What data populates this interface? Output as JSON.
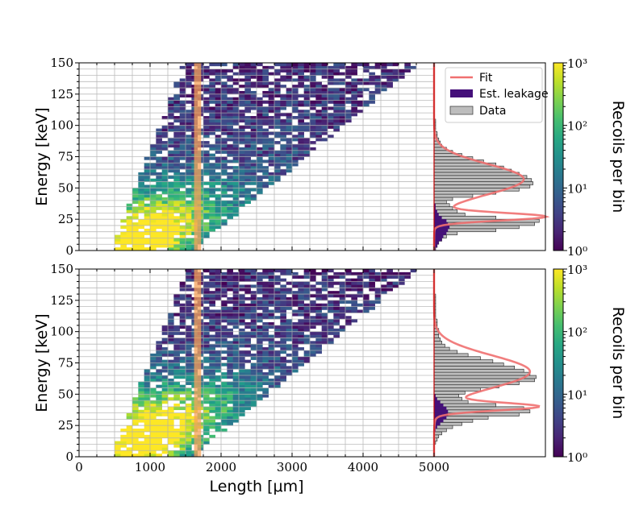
{
  "chart_data": [
    {
      "type": "heatmap",
      "panel": "top",
      "xlabel": "Length [μm]",
      "ylabel": "Energy [keV]",
      "xlim": [
        0,
        5000
      ],
      "ylim": [
        0,
        150
      ],
      "xticks": [
        "0",
        "1000",
        "2000",
        "3000",
        "4000",
        "5000"
      ],
      "yticks": [
        "0",
        "25",
        "50",
        "75",
        "100",
        "125",
        "150"
      ],
      "color_scale": "log",
      "colormap": "viridis",
      "colorbar_label": "Recoils per bin",
      "colorbar_ticks": [
        "10⁰",
        "10¹",
        "10²",
        "10³"
      ],
      "colorbar_range": [
        1,
        1000
      ],
      "highlight_band_x": [
        1620,
        1720
      ],
      "band_shape": {
        "x_start_low": 450,
        "x_start_high": 1150,
        "x_end_low": 1600,
        "x_end_high": 4800,
        "peak_energy": 10
      },
      "side_histogram": {
        "type": "horizontal-histogram",
        "legend": [
          "Fit",
          "Est. leakage",
          "Data"
        ],
        "legend_position": "top-right",
        "bins": [
          0,
          2.5,
          5,
          7.5,
          10,
          12.5,
          15,
          17.5,
          20,
          22.5,
          25,
          27.5,
          30,
          32.5,
          35,
          37.5,
          40,
          42.5,
          45,
          47.5,
          50,
          52.5,
          55,
          57.5,
          60,
          62.5,
          65,
          67.5,
          70,
          72.5,
          75,
          77.5,
          80,
          82.5,
          85,
          87.5,
          90,
          92.5,
          95,
          97.5,
          100,
          102.5,
          105,
          107.5,
          110,
          112.5,
          115,
          117.5,
          120
        ],
        "data_counts": [
          1,
          2,
          3,
          5,
          8,
          15,
          40,
          55,
          65,
          68,
          40,
          20,
          15,
          12,
          10,
          8,
          12,
          25,
          40,
          55,
          62,
          64,
          63,
          60,
          55,
          50,
          45,
          40,
          32,
          25,
          18,
          12,
          8,
          5,
          4,
          3,
          2,
          2,
          1,
          1,
          1,
          1,
          0,
          0,
          0,
          0,
          0,
          0,
          0
        ],
        "leakage_counts": [
          1,
          2,
          3,
          5,
          6,
          8,
          9,
          10,
          9,
          8,
          5,
          3,
          2,
          1,
          1,
          0,
          0,
          0,
          0,
          0,
          0,
          0,
          0,
          0,
          0,
          0,
          0,
          0,
          0,
          0,
          0,
          0,
          0,
          0,
          0,
          0,
          0,
          0,
          0,
          0,
          0,
          0,
          0,
          0,
          0,
          0,
          0,
          0,
          0
        ],
        "fit_peaks": [
          {
            "mu": 27,
            "sigma": 3,
            "amp": 70
          },
          {
            "mu": 57,
            "sigma": 12,
            "amp": 58
          }
        ],
        "fit_color": "#f07070",
        "leakage_color": "#45107a",
        "data_color": "#bdbdbd"
      }
    },
    {
      "type": "heatmap",
      "panel": "bottom",
      "xlabel": "Length [μm]",
      "ylabel": "Energy [keV]",
      "xlim": [
        0,
        5000
      ],
      "ylim": [
        0,
        150
      ],
      "xticks": [
        "0",
        "1000",
        "2000",
        "3000",
        "4000",
        "5000"
      ],
      "yticks": [
        "0",
        "25",
        "50",
        "75",
        "100",
        "125",
        "150"
      ],
      "color_scale": "log",
      "colormap": "viridis",
      "colorbar_label": "Recoils per bin",
      "colorbar_ticks": [
        "10⁰",
        "10¹",
        "10²",
        "10³"
      ],
      "colorbar_range": [
        1,
        1000
      ],
      "highlight_band_x": [
        1620,
        1720
      ],
      "band_shape": {
        "x_start_low": 450,
        "x_start_high": 1200,
        "x_end_low": 1600,
        "x_end_high": 4800,
        "peak_energy": 18
      },
      "side_histogram": {
        "type": "horizontal-histogram",
        "bins": [
          0,
          2.5,
          5,
          7.5,
          10,
          12.5,
          15,
          17.5,
          20,
          22.5,
          25,
          27.5,
          30,
          32.5,
          35,
          37.5,
          40,
          42.5,
          45,
          47.5,
          50,
          52.5,
          55,
          57.5,
          60,
          62.5,
          65,
          67.5,
          70,
          72.5,
          75,
          77.5,
          80,
          82.5,
          85,
          87.5,
          90,
          92.5,
          95,
          97.5,
          100,
          102.5,
          105,
          107.5,
          110,
          112.5,
          115,
          117.5,
          120,
          122.5,
          125,
          127.5,
          130,
          132.5
        ],
        "data_counts": [
          0,
          0,
          0,
          0,
          1,
          2,
          3,
          5,
          8,
          12,
          18,
          25,
          35,
          55,
          62,
          58,
          40,
          22,
          18,
          16,
          20,
          30,
          42,
          55,
          65,
          66,
          62,
          58,
          52,
          45,
          38,
          30,
          22,
          15,
          10,
          7,
          5,
          4,
          3,
          3,
          3,
          2,
          2,
          2,
          1,
          1,
          1,
          1,
          1,
          1,
          1,
          1,
          0,
          0
        ],
        "leakage_counts": [
          0,
          0,
          0,
          0,
          0,
          0,
          0,
          0,
          1,
          2,
          4,
          6,
          8,
          9,
          9,
          8,
          6,
          4,
          2,
          1,
          0,
          0,
          0,
          0,
          0,
          0,
          0,
          0,
          0,
          0,
          0,
          0,
          0,
          0,
          0,
          0,
          0,
          0,
          0,
          0,
          0,
          0,
          0,
          0,
          0,
          0,
          0,
          0,
          0,
          0,
          0,
          0,
          0,
          0
        ],
        "fit_peaks": [
          {
            "mu": 40,
            "sigma": 3,
            "amp": 62
          },
          {
            "mu": 68,
            "sigma": 13,
            "amp": 62
          }
        ],
        "fit_color": "#f07070",
        "leakage_color": "#45107a",
        "data_color": "#bdbdbd"
      }
    }
  ]
}
